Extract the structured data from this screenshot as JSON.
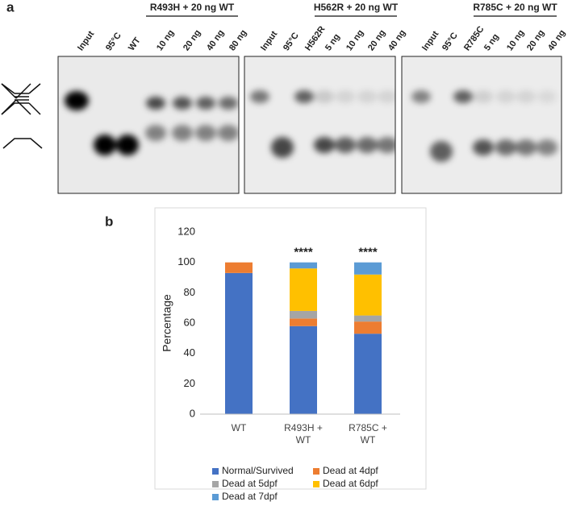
{
  "panel_labels": [
    "a",
    "b"
  ],
  "panel_a": {
    "gels": [
      {
        "header": "R493H + 20 ng WT",
        "lanes": [
          "Input",
          "95°C",
          "WT",
          "10 ng",
          "20 ng",
          "40 ng",
          "80 ng"
        ]
      },
      {
        "header": "H562R + 20 ng WT",
        "lanes": [
          "Input",
          "95°C",
          "H562R",
          "5 ng",
          "10 ng",
          "20 ng",
          "40 ng"
        ]
      },
      {
        "header": "R785C + 20 ng WT",
        "lanes": [
          "Input",
          "95°C",
          "R785C",
          "5 ng",
          "10 ng",
          "20 ng",
          "40 ng"
        ]
      }
    ]
  },
  "chart_data": {
    "type": "stacked_bar",
    "categories": [
      "WT",
      "R493H + WT",
      "R785C + WT"
    ],
    "annotations": [
      null,
      "****",
      "****"
    ],
    "y_label": "Percentage",
    "ylim": [
      0,
      120
    ],
    "yticks": [
      0,
      20,
      40,
      60,
      80,
      100,
      120
    ],
    "grid": false,
    "series": [
      {
        "name": "Normal/Survived",
        "color": "#4472c4",
        "values": [
          93,
          58,
          53
        ]
      },
      {
        "name": "Dead at 4dpf",
        "color": "#ed7d31",
        "values": [
          7,
          5,
          8
        ]
      },
      {
        "name": "Dead at 5dpf",
        "color": "#a5a5a5",
        "values": [
          0,
          5,
          4
        ]
      },
      {
        "name": "Dead at 6dpf",
        "color": "#ffc000",
        "values": [
          0,
          28,
          27
        ]
      },
      {
        "name": "Dead at 7dpf",
        "color": "#5b9bd5",
        "values": [
          0,
          4,
          8
        ]
      }
    ]
  }
}
